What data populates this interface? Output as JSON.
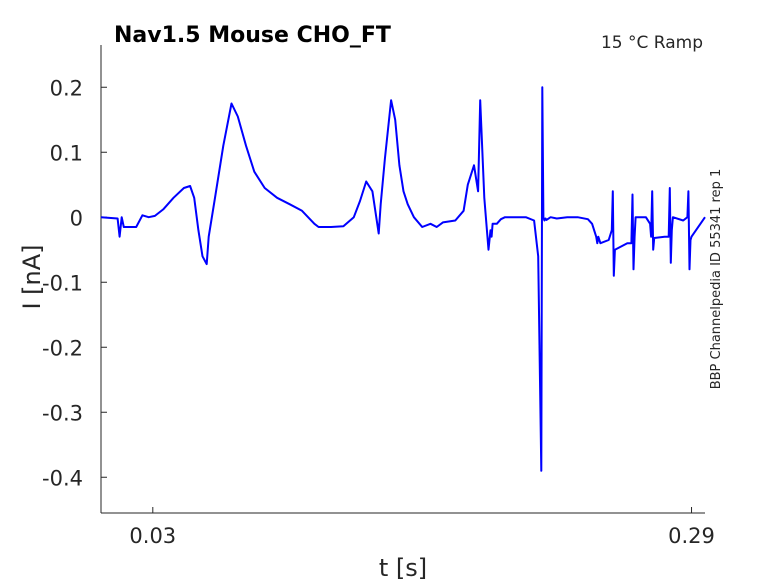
{
  "chart_data": {
    "type": "line",
    "title": "Nav1.5  Mouse  CHO_FT",
    "subtitle": "15 °C  Ramp",
    "side_label": "BBP Channelpedia ID 55341 rep 1",
    "xlabel": "t [s]",
    "ylabel": "I [nA]",
    "xlim": [
      0.005,
      0.2965
    ],
    "ylim": [
      -0.455,
      0.265
    ],
    "x_ticks": [
      0.03,
      0.29
    ],
    "x_tick_labels": [
      "0.03",
      "0.29"
    ],
    "y_ticks": [
      0.2,
      0.1,
      0,
      -0.1,
      -0.2,
      -0.3,
      -0.4
    ],
    "y_tick_labels": [
      "0.2",
      "0.1",
      "0",
      "-0.1",
      "-0.2",
      "-0.3",
      "-0.4"
    ],
    "grid": false,
    "legend": "none",
    "line_color": "#0000ff",
    "series": [
      {
        "x": [
          0.005,
          0.013,
          0.014,
          0.015,
          0.016,
          0.022,
          0.025,
          0.028,
          0.031,
          0.035,
          0.04,
          0.045,
          0.048,
          0.05,
          0.052,
          0.054,
          0.056,
          0.057,
          0.06,
          0.064,
          0.068,
          0.071,
          0.075,
          0.079,
          0.084,
          0.09,
          0.096,
          0.102,
          0.108,
          0.11,
          0.116,
          0.122,
          0.127,
          0.13,
          0.133,
          0.136,
          0.139,
          0.14,
          0.142,
          0.145,
          0.147,
          0.149,
          0.151,
          0.153,
          0.156,
          0.16,
          0.164,
          0.167,
          0.17,
          0.176,
          0.18,
          0.182,
          0.185,
          0.187,
          0.188,
          0.19,
          0.191,
          0.192,
          0.193,
          0.1935,
          0.194,
          0.196,
          0.198,
          0.2,
          0.205,
          0.21,
          0.214,
          0.216,
          0.2175,
          0.218,
          0.2185,
          0.219,
          0.2195,
          0.22,
          0.222,
          0.225,
          0.23,
          0.235,
          0.24,
          0.242,
          0.244,
          0.2445,
          0.245,
          0.246,
          0.25,
          0.2515,
          0.252,
          0.2525,
          0.253,
          0.259,
          0.261,
          0.2615,
          0.262,
          0.2625,
          0.263,
          0.268,
          0.27,
          0.2705,
          0.271,
          0.2715,
          0.272,
          0.277,
          0.279,
          0.2795,
          0.28,
          0.2805,
          0.281,
          0.286,
          0.288,
          0.2885,
          0.289,
          0.2895,
          0.29,
          0.2965
        ],
        "y": [
          0.0,
          -0.002,
          -0.03,
          0.0,
          -0.015,
          -0.015,
          0.003,
          0.0,
          0.002,
          0.012,
          0.03,
          0.045,
          0.048,
          0.03,
          -0.02,
          -0.06,
          -0.072,
          -0.03,
          0.03,
          0.11,
          0.175,
          0.155,
          0.11,
          0.07,
          0.045,
          0.03,
          0.02,
          0.01,
          -0.01,
          -0.015,
          -0.015,
          -0.014,
          0.0,
          0.025,
          0.055,
          0.04,
          -0.025,
          0.02,
          0.09,
          0.18,
          0.15,
          0.08,
          0.04,
          0.02,
          0.0,
          -0.015,
          -0.01,
          -0.015,
          -0.008,
          -0.005,
          0.01,
          0.05,
          0.08,
          0.04,
          0.18,
          0.03,
          -0.01,
          -0.05,
          -0.02,
          -0.03,
          -0.01,
          -0.01,
          -0.003,
          0.0,
          0.0,
          0.0,
          -0.005,
          -0.06,
          -0.39,
          0.2,
          0.0,
          -0.005,
          -0.002,
          -0.004,
          0.0,
          -0.002,
          0.0,
          0.0,
          -0.003,
          -0.01,
          -0.03,
          -0.04,
          -0.03,
          -0.04,
          -0.035,
          -0.02,
          0.04,
          -0.09,
          -0.05,
          -0.04,
          -0.04,
          0.035,
          -0.08,
          -0.03,
          0.0,
          0.0,
          -0.01,
          -0.03,
          0.04,
          -0.05,
          -0.032,
          -0.03,
          -0.03,
          0.045,
          -0.07,
          -0.02,
          0.0,
          -0.005,
          0.0,
          0.04,
          -0.08,
          -0.035,
          -0.03,
          0.0
        ]
      }
    ]
  }
}
